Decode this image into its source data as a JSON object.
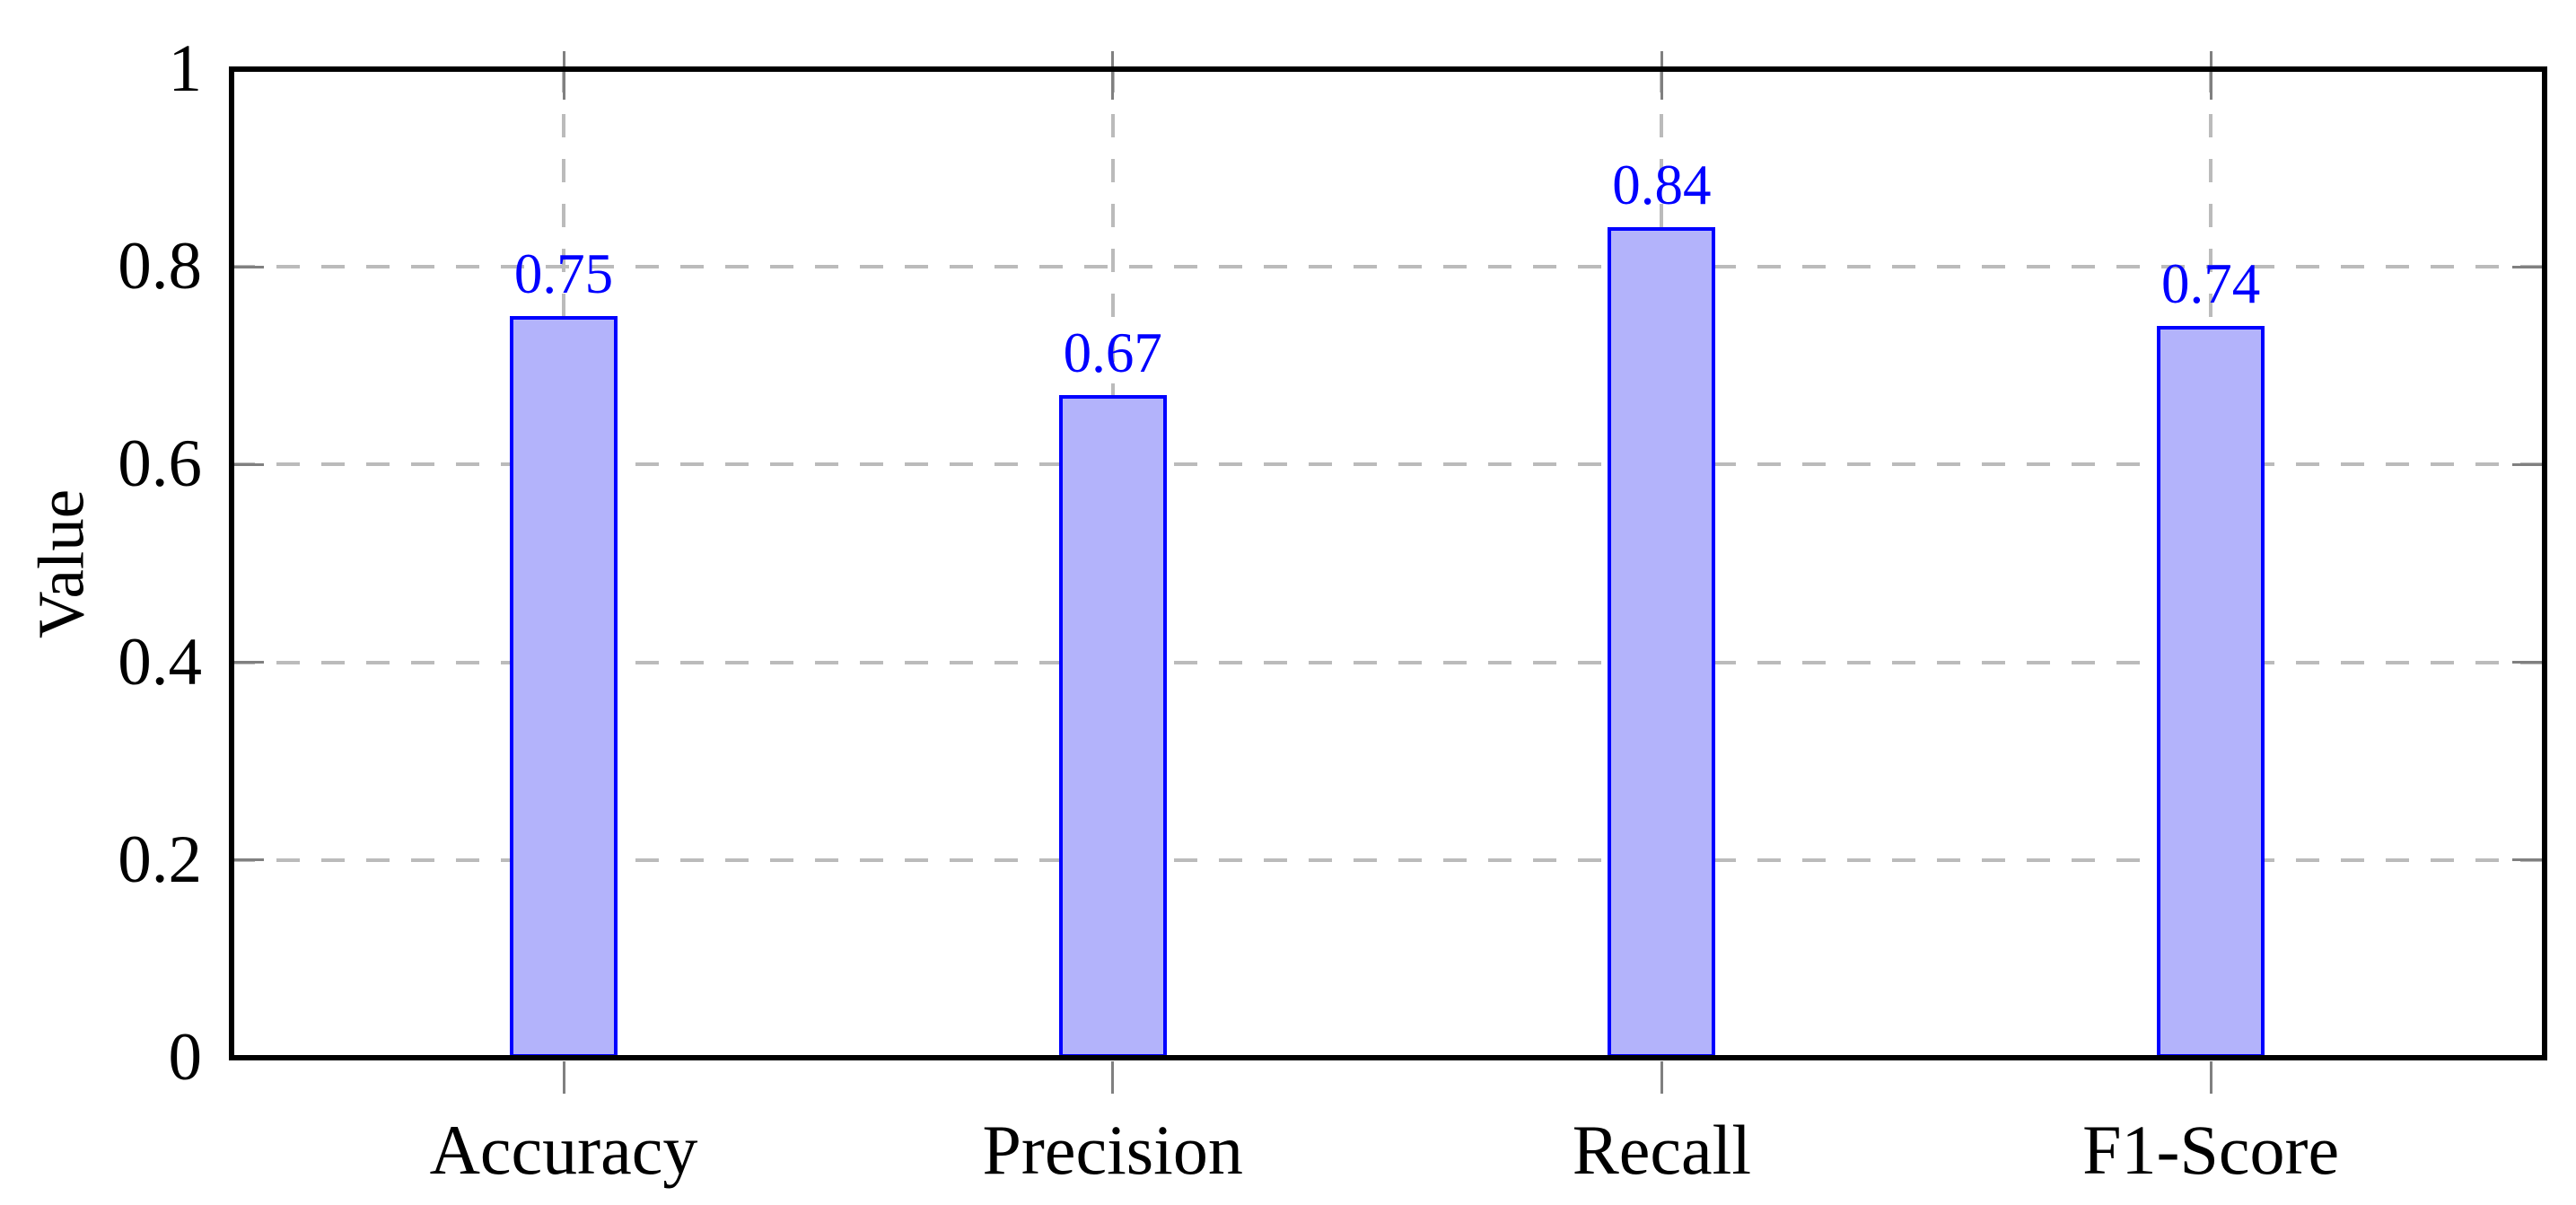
{
  "figure": {
    "background": "#ffffff"
  },
  "chart_data": {
    "type": "bar",
    "title": "",
    "xlabel": "",
    "ylabel": "Value",
    "categories": [
      "Accuracy",
      "Precision",
      "Recall",
      "F1-Score"
    ],
    "values": [
      0.75,
      0.67,
      0.84,
      0.74
    ],
    "bar_value_labels": [
      "0.75",
      "0.67",
      "0.84",
      "0.74"
    ],
    "ylim": [
      0,
      1
    ],
    "yticks": [
      0,
      0.2,
      0.4,
      0.6,
      0.8,
      1
    ],
    "ytick_labels": [
      "0",
      "0.2",
      "0.4",
      "0.6",
      "0.8",
      "1"
    ],
    "grid": {
      "style": "dashed",
      "which": "major",
      "axes": "both",
      "color": "#bbbbbb"
    },
    "legend": {
      "visible": false
    },
    "colors": {
      "bar_fill": "#b3b3fb",
      "bar_border": "#0000ff",
      "value_label": "#0000ff",
      "axis_frame": "#000000",
      "grid": "#bbbbbb",
      "tick_mark": "#808080",
      "text": "#000000",
      "background": "#ffffff"
    }
  }
}
